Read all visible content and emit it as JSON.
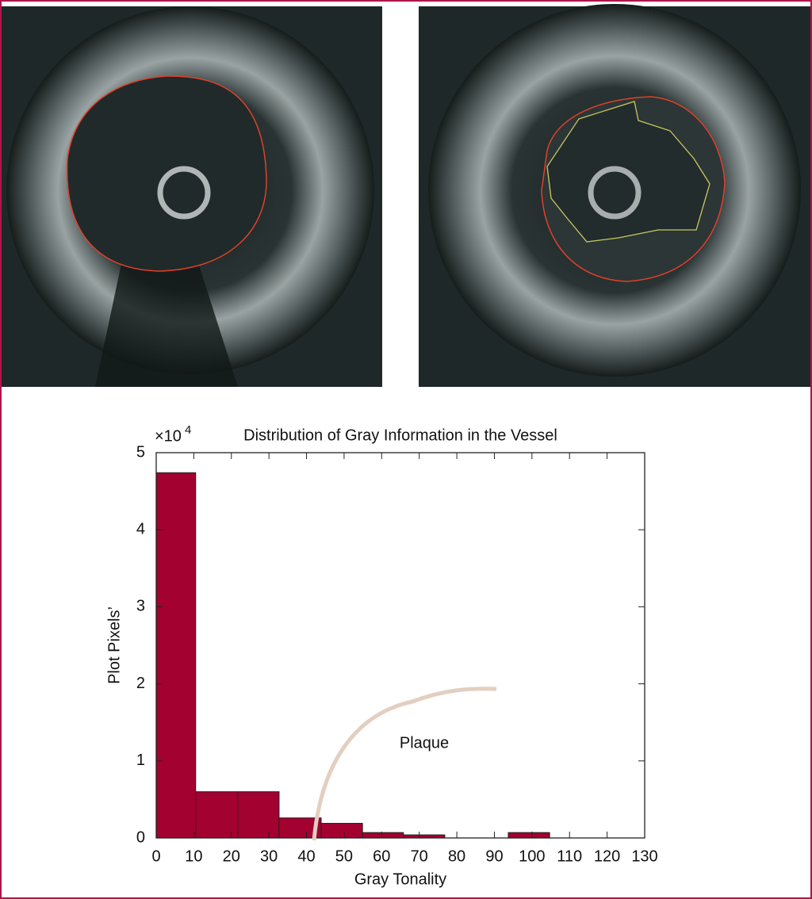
{
  "chart_data": {
    "type": "histogram",
    "title": "Distribution of Gray Information in the Vessel",
    "x_label": "Gray Tonality",
    "y_label": "Plot Pixels’",
    "y_multiplier": {
      "base": "×10",
      "exponent": "4"
    },
    "annotation": "Plaque",
    "bins": [
      0,
      10.5,
      21.7,
      32.7,
      43.9,
      54.9,
      65.8,
      76.8,
      93.7,
      104.7
    ],
    "values": [
      47400,
      6000,
      6000,
      2600,
      1900,
      700,
      400,
      0,
      700
    ],
    "color": "#a3012f",
    "xlim": [
      0,
      130
    ],
    "xticks": [
      0,
      10,
      20,
      30,
      40,
      50,
      60,
      70,
      80,
      90,
      100,
      110,
      120,
      130
    ],
    "ylim": [
      0,
      50000
    ],
    "yticks": [
      {
        "value": 0,
        "label": "0"
      },
      {
        "value": 10000,
        "label": "1"
      },
      {
        "value": 20000,
        "label": "2"
      },
      {
        "value": 30000,
        "label": "3"
      },
      {
        "value": 40000,
        "label": "4"
      },
      {
        "value": 50000,
        "label": "5"
      }
    ]
  }
}
